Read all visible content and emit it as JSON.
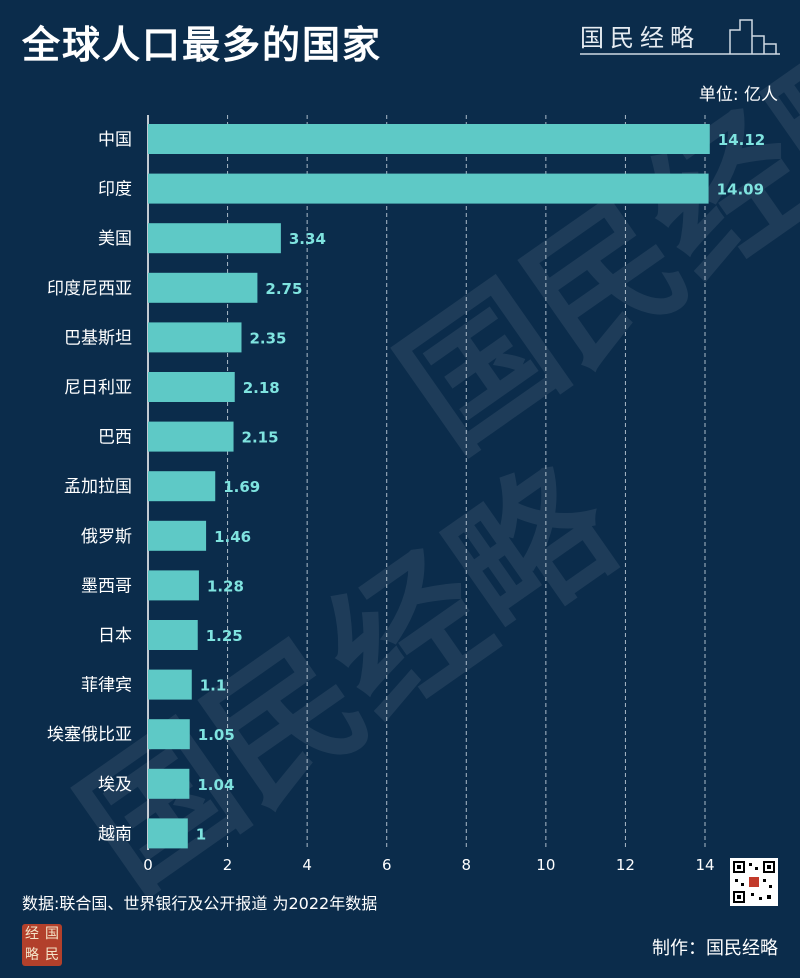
{
  "title": "全球人口最多的国家",
  "brand": "国民经略",
  "unit_label": "单位: 亿人",
  "source": "数据:联合国、世界银行及公开报道  为2022年数据",
  "maker": "制作：国民经略",
  "logo_chars": [
    "经",
    "国",
    "略",
    "民"
  ],
  "colors": {
    "background": "#0b2c4b",
    "bar": "#5ec9c6",
    "value_label": "#7fe3df",
    "grid": "#c8d4de"
  },
  "chart_data": {
    "type": "bar",
    "orientation": "horizontal",
    "categories": [
      "中国",
      "印度",
      "美国",
      "印度尼西亚",
      "巴基斯坦",
      "尼日利亚",
      "巴西",
      "孟加拉国",
      "俄罗斯",
      "墨西哥",
      "日本",
      "菲律宾",
      "埃塞俄比亚",
      "埃及",
      "越南"
    ],
    "values": [
      14.12,
      14.09,
      3.34,
      2.75,
      2.35,
      2.18,
      2.15,
      1.69,
      1.46,
      1.28,
      1.25,
      1.1,
      1.05,
      1.04,
      1
    ],
    "value_labels": [
      "14.12",
      "14.09",
      "3.34",
      "2.75",
      "2.35",
      "2.18",
      "2.15",
      "1.69",
      "1.46",
      "1.28",
      "1.25",
      "1.1",
      "1.05",
      "1.04",
      "1"
    ],
    "xticks": [
      0,
      2,
      4,
      6,
      8,
      10,
      12,
      14
    ],
    "xlim": [
      0,
      14.5
    ],
    "grid": "vertical dashed",
    "title": "全球人口最多的国家",
    "unit": "单位: 亿人"
  }
}
